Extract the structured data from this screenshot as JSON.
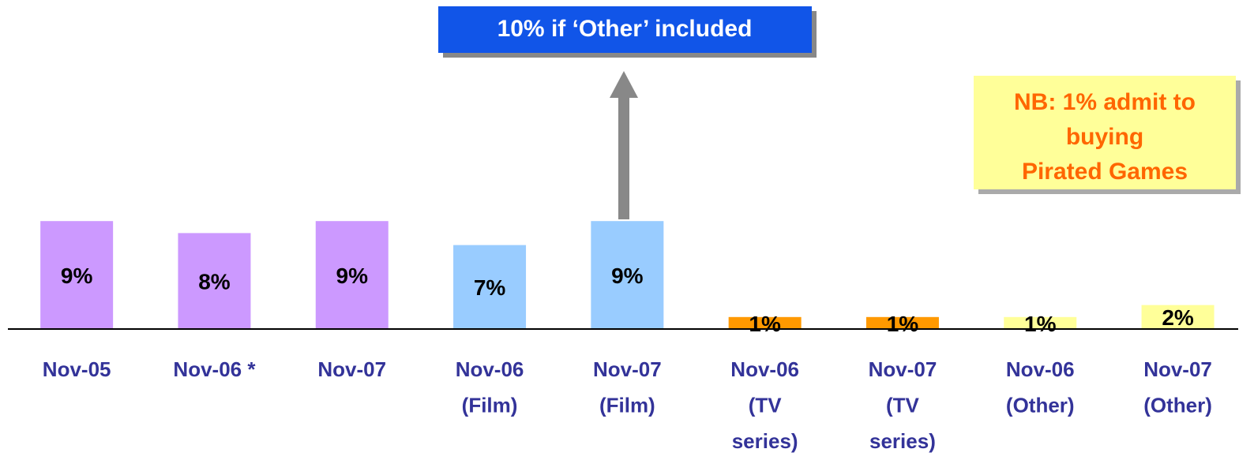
{
  "chart_data": {
    "type": "bar",
    "categories": [
      [
        "Nov-05"
      ],
      [
        "Nov-06 *"
      ],
      [
        "Nov-07"
      ],
      [
        "Nov-06",
        "(Film)"
      ],
      [
        "Nov-07",
        "(Film)"
      ],
      [
        "Nov-06",
        "(TV",
        "series)"
      ],
      [
        "Nov-07",
        "(TV",
        "series)"
      ],
      [
        "Nov-06",
        "(Other)"
      ],
      [
        "Nov-07",
        "(Other)"
      ]
    ],
    "values": [
      9,
      8,
      9,
      7,
      9,
      1,
      1,
      1,
      2
    ],
    "value_labels": [
      "9%",
      "8%",
      "9%",
      "7%",
      "9%",
      "1%",
      "1%",
      "1%",
      "2%"
    ],
    "colors": [
      "#cc99ff",
      "#cc99ff",
      "#cc99ff",
      "#99ccff",
      "#99ccff",
      "#ff9900",
      "#ff9900",
      "#ffff99",
      "#ffff99"
    ],
    "annotations": {
      "other_included": "10% if ‘Other’ included",
      "note": [
        "NB: 1% admit to",
        "buying",
        "Pirated Games"
      ]
    }
  }
}
